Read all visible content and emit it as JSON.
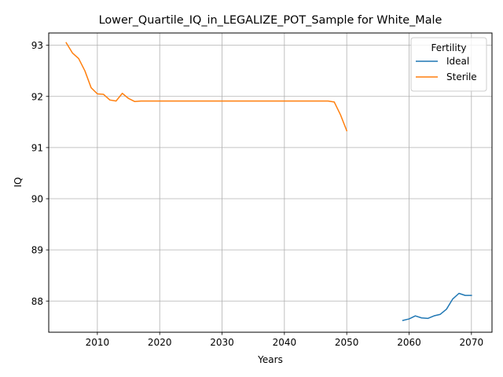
{
  "chart_data": {
    "type": "line",
    "title": "Lower_Quartile_IQ_in_LEGALIZE_POT_Sample for White_Male",
    "xlabel": "Years",
    "ylabel": "IQ",
    "xlim": [
      2002.2,
      2073.3
    ],
    "ylim": [
      87.39,
      93.24
    ],
    "xticks": [
      2010,
      2020,
      2030,
      2040,
      2050,
      2060,
      2070
    ],
    "yticks": [
      88,
      89,
      90,
      91,
      92,
      93
    ],
    "grid": true,
    "legend": {
      "title": "Fertility",
      "position": "top-right"
    },
    "series": [
      {
        "name": "Ideal",
        "color": "#1f77b4",
        "x": [
          2059,
          2060,
          2061,
          2062,
          2063,
          2064,
          2065,
          2066,
          2067,
          2068,
          2069,
          2070
        ],
        "y": [
          87.62,
          87.65,
          87.71,
          87.67,
          87.66,
          87.71,
          87.74,
          87.84,
          88.04,
          88.15,
          88.11,
          88.11
        ]
      },
      {
        "name": "Sterile",
        "color": "#ff7f0e",
        "x": [
          2005,
          2006,
          2007,
          2008,
          2009,
          2010,
          2011,
          2012,
          2013,
          2014,
          2015,
          2016,
          2017,
          2018,
          2020,
          2025,
          2030,
          2035,
          2040,
          2045,
          2047,
          2048,
          2049,
          2050
        ],
        "y": [
          93.05,
          92.85,
          92.74,
          92.5,
          92.17,
          92.05,
          92.04,
          91.93,
          91.91,
          92.06,
          91.96,
          91.9,
          91.91,
          91.91,
          91.91,
          91.91,
          91.91,
          91.91,
          91.91,
          91.91,
          91.91,
          91.89,
          91.64,
          91.33
        ]
      }
    ]
  }
}
